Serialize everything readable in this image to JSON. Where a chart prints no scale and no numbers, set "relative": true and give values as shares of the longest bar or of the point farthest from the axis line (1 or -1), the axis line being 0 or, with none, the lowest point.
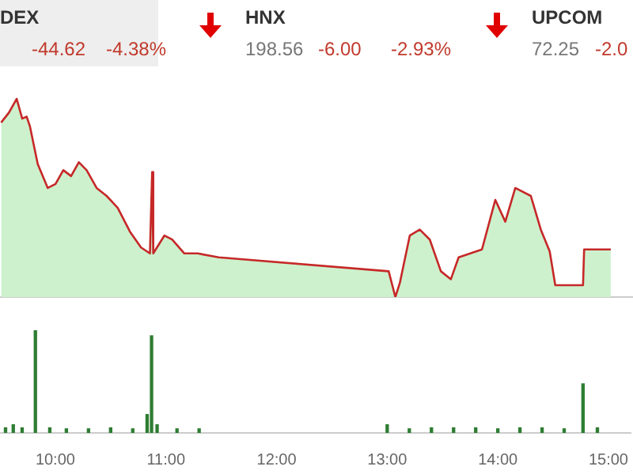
{
  "chart_data": [
    {
      "type": "area",
      "relative": true,
      "annotations": [
        "DEX",
        "-44.62",
        "-4.38%",
        "HNX",
        "198.56",
        "-6.00",
        "-2.93%",
        "UPCOM",
        "72.25",
        "-2.0"
      ],
      "xlim": [
        9.5,
        15.2
      ],
      "tick_labels": false,
      "legend": false,
      "series": [
        {
          "color": "#cdf1cd",
          "x": [
            9.51,
            9.58,
            9.65,
            9.7,
            9.74,
            9.77,
            9.84,
            9.93,
            10.0,
            10.07,
            10.14,
            10.21,
            10.28,
            10.37,
            10.46,
            10.56,
            10.67,
            10.77,
            10.85,
            10.87,
            10.88,
            10.98,
            11.05,
            11.16,
            11.28,
            11.47,
            13.0,
            13.06,
            13.1,
            13.19,
            13.28,
            13.37,
            13.47,
            13.56,
            13.63,
            13.84,
            13.96,
            14.05,
            14.14,
            14.28,
            14.37,
            14.45,
            14.5,
            14.75,
            14.76,
            15.0
          ],
          "values": [
            0.88,
            0.93,
            1.0,
            0.9,
            0.91,
            0.86,
            0.67,
            0.55,
            0.57,
            0.64,
            0.61,
            0.68,
            0.64,
            0.55,
            0.51,
            0.45,
            0.33,
            0.25,
            0.22,
            0.63,
            0.22,
            0.31,
            0.29,
            0.22,
            0.22,
            0.2,
            0.13,
            0,
            0.07,
            0.31,
            0.34,
            0.29,
            0.13,
            0.09,
            0.2,
            0.24,
            0.49,
            0.38,
            0.55,
            0.51,
            0.34,
            0.23,
            0.06,
            0.06,
            0.24,
            0.24
          ]
        }
      ]
    },
    {
      "type": "bar",
      "relative": true,
      "xlim": [
        9.5,
        15.2
      ],
      "xticks": [
        {
          "value": 10,
          "label": "10:00"
        },
        {
          "value": 11,
          "label": "11:00"
        },
        {
          "value": 12,
          "label": "12:00"
        },
        {
          "value": 13,
          "label": "13:00"
        },
        {
          "value": 14,
          "label": "14:00"
        },
        {
          "value": 15,
          "label": "15:00"
        }
      ],
      "tick_labels": "x",
      "legend": false,
      "series": [
        {
          "color": "#2e7d32",
          "x": [
            9.55,
            9.62,
            9.7,
            9.82,
            9.95,
            10.1,
            10.3,
            10.5,
            10.7,
            10.83,
            10.87,
            10.92,
            11.1,
            11.3,
            13.0,
            13.2,
            13.4,
            13.6,
            13.8,
            14.0,
            14.2,
            14.4,
            14.6,
            14.77,
            14.9
          ],
          "values": [
            0.05,
            0.08,
            0.05,
            1.0,
            0.05,
            0.04,
            0.04,
            0.05,
            0.04,
            0.18,
            0.95,
            0.08,
            0.04,
            0.04,
            0.08,
            0.04,
            0.05,
            0.05,
            0.05,
            0.04,
            0.05,
            0.05,
            0.04,
            0.48,
            0.05
          ]
        }
      ]
    }
  ]
}
